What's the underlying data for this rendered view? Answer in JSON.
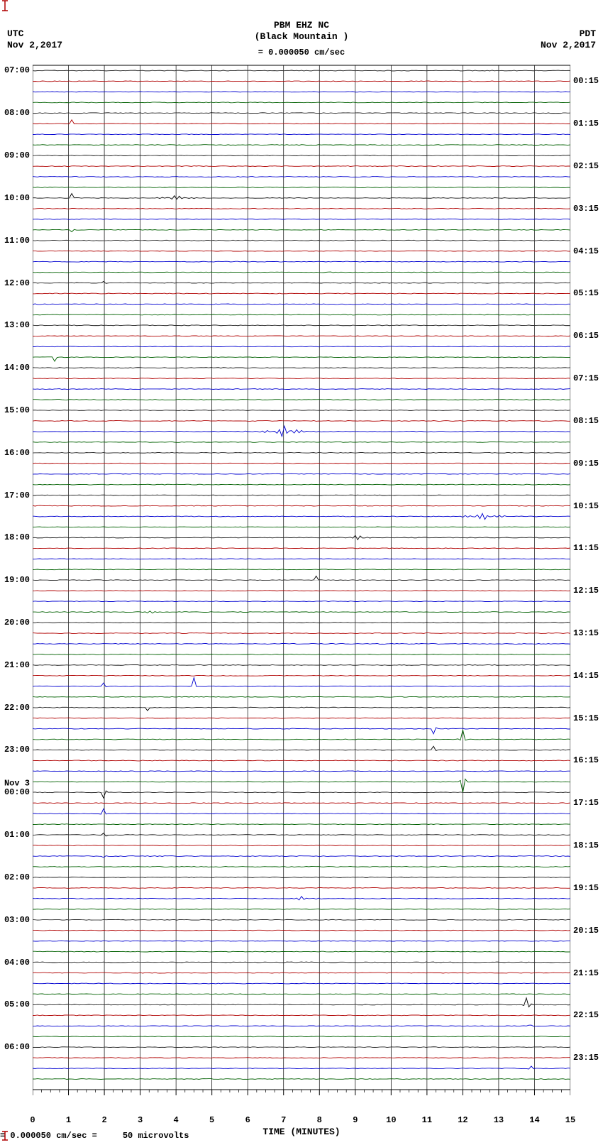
{
  "header": {
    "title": "PBM EHZ NC",
    "subtitle": "(Black Mountain )",
    "scale_text": "= 0.000050 cm/sec"
  },
  "top_left": {
    "tz": "UTC",
    "date": "Nov 2,2017"
  },
  "top_right": {
    "tz": "PDT",
    "date": "Nov 2,2017"
  },
  "left_day2_label": "Nov 3",
  "bottom_note_prefix": " = 0.000050 cm/sec =",
  "bottom_note_suffix": "50 microvolts",
  "x_axis": {
    "title": "TIME (MINUTES)",
    "min": 0,
    "max": 15,
    "major_ticks": [
      0,
      1,
      2,
      3,
      4,
      5,
      6,
      7,
      8,
      9,
      10,
      11,
      12,
      13,
      14,
      15
    ]
  },
  "colors": {
    "black": "#000000",
    "red": "#b00000",
    "blue": "#0000d0",
    "green": "#006000",
    "grid": "#000000",
    "grid_light": "#7a7a7a",
    "bg": "#ffffff"
  },
  "plot": {
    "left_hours_utc": [
      "07:00",
      "08:00",
      "09:00",
      "10:00",
      "11:00",
      "12:00",
      "13:00",
      "14:00",
      "15:00",
      "16:00",
      "17:00",
      "18:00",
      "19:00",
      "20:00",
      "21:00",
      "22:00",
      "23:00",
      "00:00",
      "01:00",
      "02:00",
      "03:00",
      "04:00",
      "05:00",
      "06:00"
    ],
    "right_labels_pdt": [
      "00:15",
      "01:15",
      "02:15",
      "03:15",
      "04:15",
      "05:15",
      "06:15",
      "07:15",
      "08:15",
      "09:15",
      "10:15",
      "11:15",
      "12:15",
      "13:15",
      "14:15",
      "15:15",
      "16:15",
      "17:15",
      "18:15",
      "19:15",
      "20:15",
      "21:15",
      "22:15",
      "23:15"
    ],
    "trace_colors": [
      "black",
      "red",
      "blue",
      "green"
    ],
    "n_traces": 96,
    "noise_amp": 0.9,
    "events": [
      {
        "trace": 5,
        "t": 1.1,
        "amp": 14,
        "width": 0.06,
        "burst": true
      },
      {
        "trace": 12,
        "t": 1.1,
        "amp": 22,
        "width": 0.06,
        "burst": true
      },
      {
        "trace": 12,
        "t": 4.0,
        "amp": 6,
        "width": 0.9,
        "burst": true
      },
      {
        "trace": 15,
        "t": 1.1,
        "amp": 16,
        "width": 0.06,
        "burst": true
      },
      {
        "trace": 20,
        "t": 1.2,
        "amp": 20,
        "width": 0.06,
        "burst": true
      },
      {
        "trace": 20,
        "t": 2.0,
        "amp": 4,
        "width": 0.3,
        "burst": true
      },
      {
        "trace": 27,
        "t": 0.6,
        "amp": 6,
        "width": 0.05,
        "burst": false
      },
      {
        "trace": 34,
        "t": 7.0,
        "amp": 10,
        "width": 1.2,
        "burst": true
      },
      {
        "trace": 34,
        "t": 7.2,
        "amp": 6,
        "width": 0.4,
        "burst": true
      },
      {
        "trace": 41,
        "t": 4.4,
        "amp": 4,
        "width": 0.1,
        "burst": false
      },
      {
        "trace": 42,
        "t": 12.6,
        "amp": 8,
        "width": 1.2,
        "burst": true
      },
      {
        "trace": 44,
        "t": 9.1,
        "amp": 8,
        "width": 0.6,
        "burst": true
      },
      {
        "trace": 48,
        "t": 7.9,
        "amp": 6,
        "width": 0.05,
        "burst": false
      },
      {
        "trace": 51,
        "t": 3.3,
        "amp": 4,
        "width": 0.5,
        "burst": true
      },
      {
        "trace": 56,
        "t": 5.0,
        "amp": 10,
        "width": 0.05,
        "burst": false
      },
      {
        "trace": 58,
        "t": 2.0,
        "amp": 32,
        "width": 0.06,
        "burst": true
      },
      {
        "trace": 58,
        "t": 4.5,
        "amp": 12,
        "width": 0.05,
        "burst": false
      },
      {
        "trace": 60,
        "t": 1.6,
        "amp": 6,
        "width": 0.05,
        "burst": false
      },
      {
        "trace": 60,
        "t": 3.2,
        "amp": 4,
        "width": 0.05,
        "burst": false
      },
      {
        "trace": 60,
        "t": 4.4,
        "amp": 6,
        "width": 0.05,
        "burst": false
      },
      {
        "trace": 60,
        "t": 11.2,
        "amp": 28,
        "width": 0.08,
        "burst": true
      },
      {
        "trace": 62,
        "t": 11.2,
        "amp": 28,
        "width": 0.08,
        "burst": true
      },
      {
        "trace": 63,
        "t": 12.0,
        "amp": 20,
        "width": 0.15,
        "burst": true
      },
      {
        "trace": 64,
        "t": 11.2,
        "amp": 24,
        "width": 0.08,
        "burst": true
      },
      {
        "trace": 67,
        "t": 12.0,
        "amp": 28,
        "width": 0.15,
        "burst": true
      },
      {
        "trace": 68,
        "t": 2.0,
        "amp": 38,
        "width": 0.08,
        "burst": true
      },
      {
        "trace": 70,
        "t": 2.0,
        "amp": 44,
        "width": 0.1,
        "burst": true
      },
      {
        "trace": 72,
        "t": 2.0,
        "amp": 30,
        "width": 0.08,
        "burst": true
      },
      {
        "trace": 74,
        "t": 2.0,
        "amp": 16,
        "width": 0.06,
        "burst": true
      },
      {
        "trace": 78,
        "t": 7.5,
        "amp": 4,
        "width": 0.8,
        "burst": true
      },
      {
        "trace": 88,
        "t": 13.8,
        "amp": 26,
        "width": 0.15,
        "burst": true
      },
      {
        "trace": 90,
        "t": 13.9,
        "amp": 18,
        "width": 0.12,
        "burst": true
      },
      {
        "trace": 92,
        "t": 4.5,
        "amp": 8,
        "width": 0.08,
        "burst": true
      },
      {
        "trace": 94,
        "t": 13.9,
        "amp": 14,
        "width": 0.1,
        "burst": true
      }
    ]
  },
  "grid": {
    "major_line_width": 1,
    "minor_line_width": 0.5
  }
}
